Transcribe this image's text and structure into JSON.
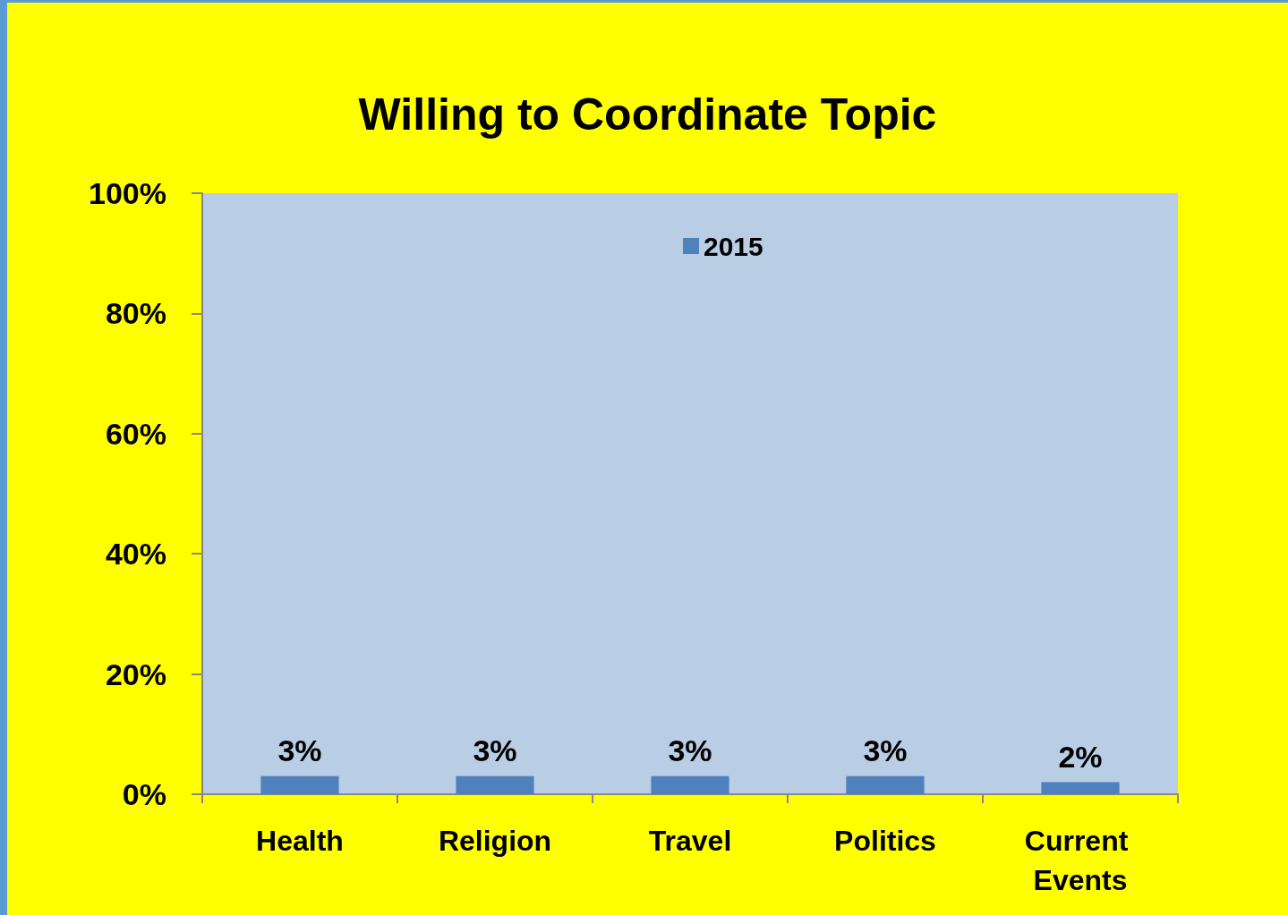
{
  "chart_data": {
    "type": "bar",
    "title": "Willing to Coordinate Topic",
    "categories": [
      "Health",
      "Religion",
      "Travel",
      "Politics",
      "Current Events"
    ],
    "series": [
      {
        "name": "2015",
        "color": "#4f81bd",
        "values": [
          3,
          3,
          3,
          3,
          2
        ],
        "value_labels": [
          "3%",
          "3%",
          "3%",
          "3%",
          "2%"
        ]
      }
    ],
    "ylim": [
      0,
      100
    ],
    "yticks": [
      {
        "value": 0,
        "label": "0%"
      },
      {
        "value": 20,
        "label": "20%"
      },
      {
        "value": 40,
        "label": "40%"
      },
      {
        "value": 60,
        "label": "60%"
      },
      {
        "value": 80,
        "label": "80%"
      },
      {
        "value": 100,
        "label": "100%"
      }
    ],
    "grid": false,
    "legend": "top"
  }
}
